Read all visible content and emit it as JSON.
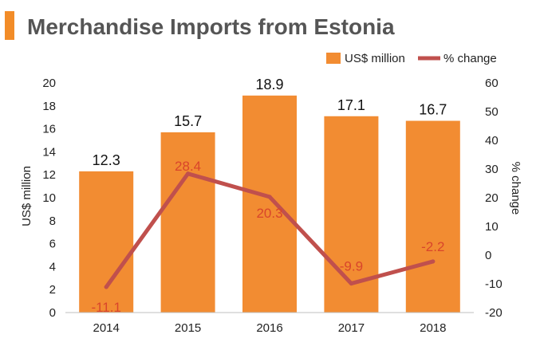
{
  "title": "Merchandise Imports from Estonia",
  "colors": {
    "accent": "#f28c28",
    "bar": "#f28c32",
    "line": "#c0504d",
    "line_label": "#d9452b"
  },
  "chart_data": {
    "type": "bar",
    "title": "Merchandise Imports from Estonia",
    "categories": [
      "2014",
      "2015",
      "2016",
      "2017",
      "2018"
    ],
    "series": [
      {
        "name": "US$ million",
        "type": "bar",
        "axis": "left",
        "values": [
          12.3,
          15.7,
          18.9,
          17.1,
          16.7
        ],
        "labels": [
          "12.3",
          "15.7",
          "18.9",
          "17.1",
          "16.7"
        ]
      },
      {
        "name": "% change",
        "type": "line",
        "axis": "right",
        "values": [
          -11.1,
          28.4,
          20.3,
          -9.9,
          -2.2
        ],
        "labels": [
          "-11.1",
          "28.4",
          "20.3",
          "-9.9",
          "-2.2"
        ]
      }
    ],
    "ylabel": "US$ million",
    "y2label": "% change",
    "ylim": [
      0,
      20
    ],
    "y2lim": [
      -20,
      60
    ],
    "yticks": [
      "0",
      "2",
      "4",
      "6",
      "8",
      "10",
      "12",
      "14",
      "16",
      "18",
      "20"
    ],
    "y2ticks": [
      "-20",
      "-10",
      "0",
      "10",
      "20",
      "30",
      "40",
      "50",
      "60"
    ],
    "grid": false,
    "legend": "top-right"
  }
}
